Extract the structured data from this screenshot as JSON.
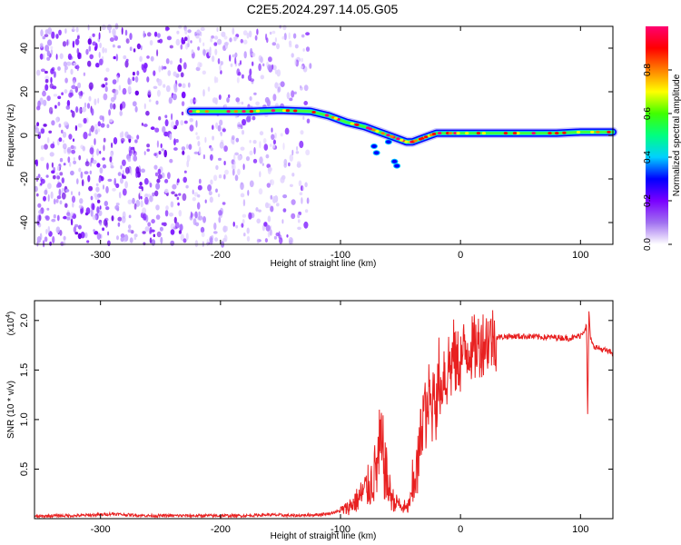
{
  "title": "C2E5.2024.297.14.05.G05",
  "chart_data": [
    {
      "type": "heatmap",
      "xlabel": "Height of straight line (km)",
      "ylabel": "Frequency (Hz)",
      "xlim": [
        -355,
        127
      ],
      "ylim": [
        -50,
        50
      ],
      "xticks": [
        -300,
        -200,
        -100,
        0,
        100
      ],
      "yticks": [
        -40,
        -20,
        0,
        20,
        40
      ],
      "noise_region_x": [
        -355,
        -125
      ],
      "ridge": {
        "x": [
          -225,
          -200,
          -175,
          -150,
          -125,
          -110,
          -95,
          -80,
          -70,
          -60,
          -50,
          -45,
          -40,
          -35,
          -30,
          -25,
          -20,
          -10,
          0,
          20,
          50,
          80,
          100,
          127
        ],
        "y": [
          11,
          11,
          11,
          11.5,
          11,
          9,
          6,
          4,
          2,
          0,
          -2,
          -3,
          -3,
          -2,
          -1,
          0,
          1,
          1,
          1,
          1,
          1,
          1,
          1.5,
          1.5
        ]
      },
      "colorbar": {
        "label": "Normalized spectral amplitude",
        "range": [
          0,
          1
        ],
        "ticks": [
          "0.0",
          "0.2",
          "0.4",
          "0.6",
          "0.8"
        ],
        "colors": [
          "#ffffff",
          "#a070f0",
          "#7a00ff",
          "#0000ff",
          "#00d0ff",
          "#00ff80",
          "#40ff00",
          "#ffff00",
          "#ff8000",
          "#ff0000",
          "#ff0070"
        ]
      }
    },
    {
      "type": "line",
      "xlabel": "Height of straight line (km)",
      "ylabel": "SNR (10 * v/v)",
      "y_multiplier": "(x10",
      "y_multiplier_exp": "4",
      "xlim": [
        -355,
        127
      ],
      "ylim": [
        0,
        2.2
      ],
      "xticks": [
        -300,
        -200,
        -100,
        0,
        100
      ],
      "yticks": [
        "0.5",
        "1.0",
        "1.5",
        "2.0"
      ],
      "series": [
        {
          "color": "#e82020",
          "x": [
            -355,
            -340,
            -320,
            -300,
            -290,
            -280,
            -260,
            -240,
            -220,
            -200,
            -180,
            -160,
            -140,
            -120,
            -110,
            -100,
            -95,
            -90,
            -85,
            -80,
            -75,
            -70,
            -67,
            -64,
            -62,
            -60,
            -58,
            -55,
            -52,
            -50,
            -47,
            -45,
            -43,
            -40,
            -38,
            -36,
            -34,
            -32,
            -30,
            -28,
            -26,
            -24,
            -22,
            -20,
            -18,
            -16,
            -14,
            -12,
            -10,
            -8,
            -6,
            -4,
            -2,
            0,
            2,
            4,
            6,
            8,
            10,
            15,
            20,
            25,
            30,
            40,
            50,
            60,
            70,
            80,
            90,
            95,
            100,
            103,
            105,
            106,
            107,
            108,
            110,
            115,
            120,
            127
          ],
          "y": [
            0.02,
            0.03,
            0.03,
            0.04,
            0.05,
            0.04,
            0.03,
            0.03,
            0.03,
            0.03,
            0.03,
            0.04,
            0.03,
            0.04,
            0.05,
            0.08,
            0.1,
            0.15,
            0.2,
            0.28,
            0.35,
            0.5,
            0.7,
            0.6,
            0.45,
            0.3,
            0.25,
            0.15,
            0.18,
            0.1,
            0.12,
            0.08,
            0.15,
            0.25,
            0.5,
            0.45,
            0.7,
            1.0,
            1.15,
            0.95,
            1.3,
            1.0,
            1.45,
            1.05,
            1.5,
            1.25,
            1.55,
            1.35,
            1.6,
            1.5,
            1.7,
            1.55,
            1.6,
            1.6,
            1.65,
            1.7,
            1.72,
            1.75,
            1.7,
            1.75,
            1.8,
            1.82,
            1.83,
            1.84,
            1.84,
            1.84,
            1.83,
            1.83,
            1.82,
            1.83,
            1.85,
            1.9,
            1.95,
            1.0,
            2.1,
            1.85,
            1.75,
            1.72,
            1.7,
            1.67
          ]
        }
      ]
    }
  ]
}
